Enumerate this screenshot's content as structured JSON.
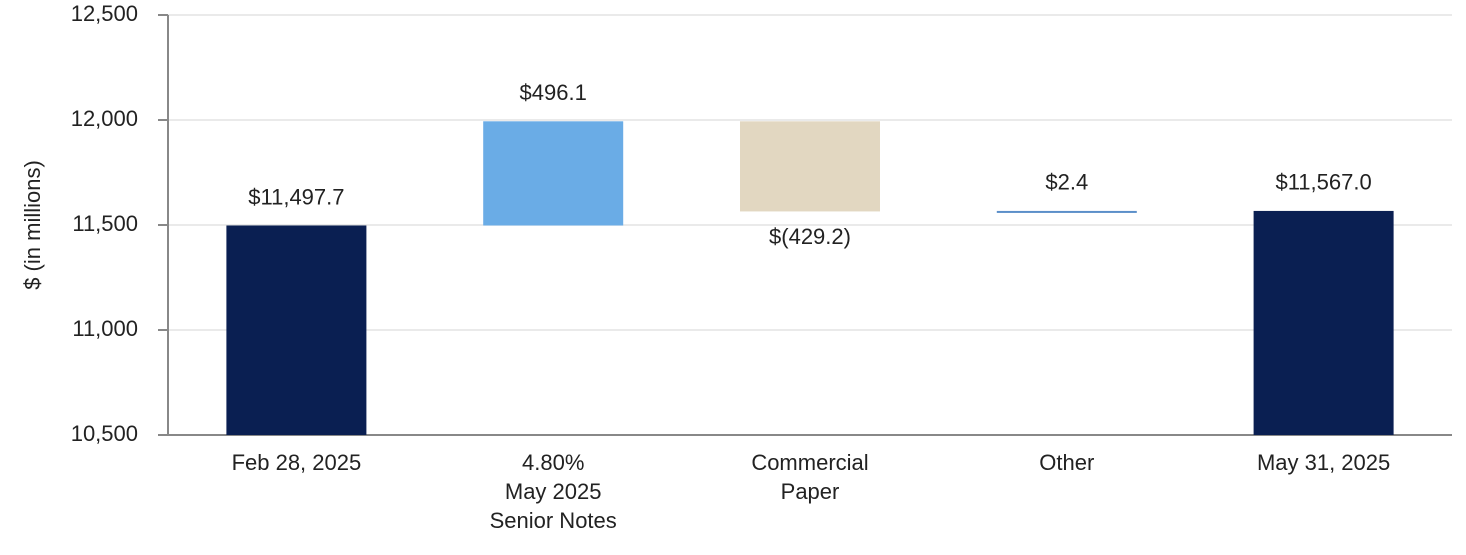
{
  "chart_data": {
    "type": "waterfall",
    "y_label": "$ (in millions)",
    "categories": [
      "Feb 28, 2025",
      "4.80%\nMay 2025\nSenior Notes",
      "Commercial\nPaper",
      "Other",
      "May 31, 2025"
    ],
    "values": [
      11497.7,
      496.1,
      -429.2,
      2.4,
      11567.0
    ],
    "value_labels": [
      "$11,497.7",
      "$496.1",
      "$(429.2)",
      "$2.4",
      "$11,567.0"
    ],
    "colors": [
      "#0a1f52",
      "#6aace6",
      "#e2d7c1",
      "#5b8fc9",
      "#0a1f52"
    ],
    "ylim": [
      10500,
      12500
    ],
    "yticks": [
      {
        "value": 10500,
        "label": "10,500"
      },
      {
        "value": 11000,
        "label": "11,000"
      },
      {
        "value": 11500,
        "label": "11,500"
      },
      {
        "value": 12000,
        "label": "12,000"
      },
      {
        "value": 12500,
        "label": "12,500"
      }
    ],
    "grid": true
  }
}
